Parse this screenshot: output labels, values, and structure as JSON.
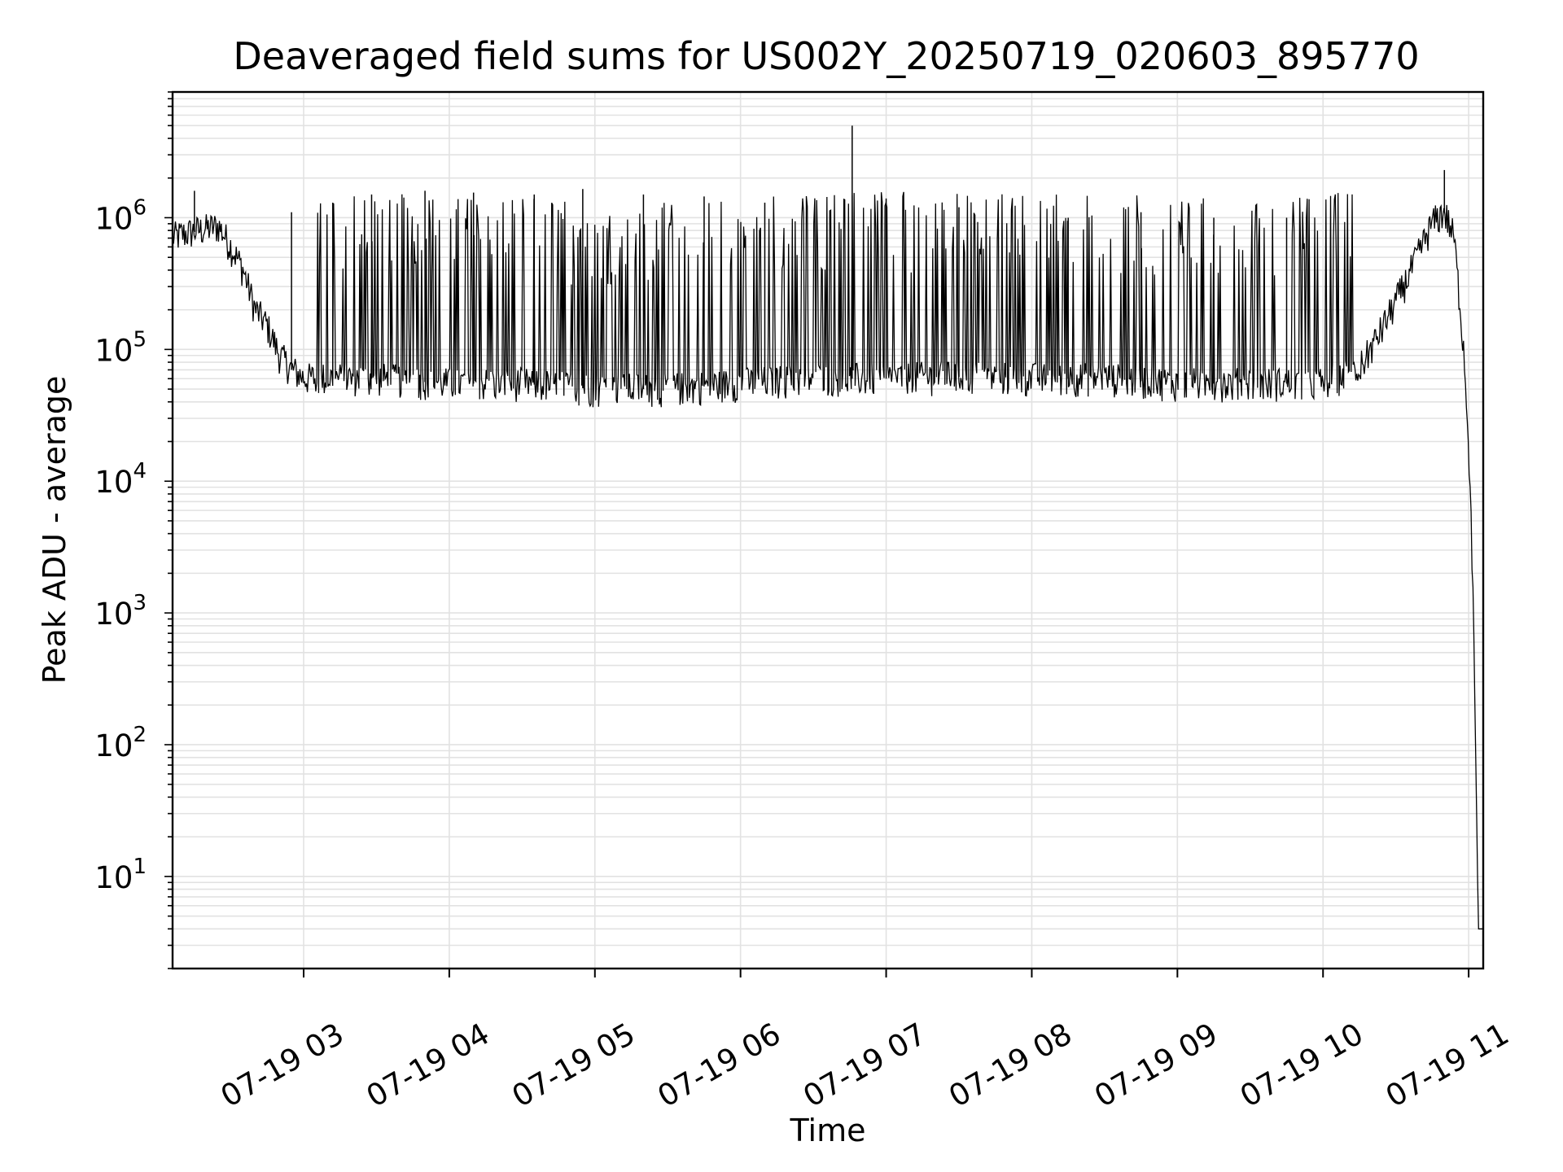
{
  "chart_data": {
    "type": "line",
    "title": "Deaveraged field sums for US002Y_20250719_020603_895770",
    "xlabel": "Time",
    "ylabel": "Peak ADU - average",
    "yscale": "log",
    "ylim": [
      2,
      9000000
    ],
    "xlim": [
      "2025-07-19 02:06",
      "2025-07-19 11:06"
    ],
    "grid": true,
    "x_ticks": [
      {
        "value": "2025-07-19 03:00",
        "label": "07-19 03"
      },
      {
        "value": "2025-07-19 04:00",
        "label": "07-19 04"
      },
      {
        "value": "2025-07-19 05:00",
        "label": "07-19 05"
      },
      {
        "value": "2025-07-19 06:00",
        "label": "07-19 06"
      },
      {
        "value": "2025-07-19 07:00",
        "label": "07-19 07"
      },
      {
        "value": "2025-07-19 08:00",
        "label": "07-19 08"
      },
      {
        "value": "2025-07-19 09:00",
        "label": "07-19 09"
      },
      {
        "value": "2025-07-19 10:00",
        "label": "07-19 10"
      },
      {
        "value": "2025-07-19 11:00",
        "label": "07-19 11"
      }
    ],
    "y_ticks": [
      {
        "value": 10,
        "base": "10",
        "exp": "1"
      },
      {
        "value": 100,
        "base": "10",
        "exp": "2"
      },
      {
        "value": 1000,
        "base": "10",
        "exp": "3"
      },
      {
        "value": 10000,
        "base": "10",
        "exp": "4"
      },
      {
        "value": 100000,
        "base": "10",
        "exp": "5"
      },
      {
        "value": 1000000,
        "base": "10",
        "exp": "6"
      }
    ],
    "series": [
      {
        "color": "#000000",
        "points": [
          [
            "2025-07-19 02:06",
            700000
          ],
          [
            "2025-07-19 02:15",
            780000
          ],
          [
            "2025-07-19 02:25",
            850000
          ],
          [
            "2025-07-19 02:30",
            600000
          ],
          [
            "2025-07-19 02:35",
            400000
          ],
          [
            "2025-07-19 02:40",
            200000
          ],
          [
            "2025-07-19 02:45",
            150000
          ],
          [
            "2025-07-19 02:50",
            90000
          ],
          [
            "2025-07-19 02:55",
            70000
          ],
          [
            "2025-07-19 03:00",
            60000
          ],
          [
            "2025-07-19 03:30",
            60000
          ],
          [
            "2025-07-19 04:00",
            55000
          ],
          [
            "2025-07-19 04:30",
            55000
          ],
          [
            "2025-07-19 05:00",
            50000
          ],
          [
            "2025-07-19 05:30",
            50000
          ],
          [
            "2025-07-19 06:00",
            55000
          ],
          [
            "2025-07-19 06:30",
            60000
          ],
          [
            "2025-07-19 07:00",
            60000
          ],
          [
            "2025-07-19 07:30",
            62000
          ],
          [
            "2025-07-19 08:00",
            60000
          ],
          [
            "2025-07-19 08:30",
            60000
          ],
          [
            "2025-07-19 09:00",
            55000
          ],
          [
            "2025-07-19 09:30",
            55000
          ],
          [
            "2025-07-19 10:00",
            55000
          ],
          [
            "2025-07-19 10:15",
            70000
          ],
          [
            "2025-07-19 10:25",
            150000
          ],
          [
            "2025-07-19 10:35",
            350000
          ],
          [
            "2025-07-19 10:45",
            900000
          ],
          [
            "2025-07-19 10:50",
            1100000
          ],
          [
            "2025-07-19 10:54",
            700000
          ],
          [
            "2025-07-19 10:58",
            100000
          ],
          [
            "2025-07-19 11:00",
            20000
          ],
          [
            "2025-07-19 11:02",
            1000
          ],
          [
            "2025-07-19 11:04",
            4
          ],
          [
            "2025-07-19 11:06",
            4
          ]
        ],
        "spikes": [
          [
            "2025-07-19 02:15",
            1600000
          ],
          [
            "2025-07-19 02:55",
            1100000
          ],
          [
            "2025-07-19 03:12",
            1300000
          ],
          [
            "2025-07-19 03:28",
            1500000
          ],
          [
            "2025-07-19 03:50",
            1600000
          ],
          [
            "2025-07-19 04:10",
            1550000
          ],
          [
            "2025-07-19 04:35",
            1500000
          ],
          [
            "2025-07-19 04:55",
            1650000
          ],
          [
            "2025-07-19 05:20",
            1500000
          ],
          [
            "2025-07-19 05:45",
            1450000
          ],
          [
            "2025-07-19 06:10",
            1300000
          ],
          [
            "2025-07-19 06:46",
            5000000
          ],
          [
            "2025-07-19 07:00",
            1400000
          ],
          [
            "2025-07-19 07:30",
            1200000
          ],
          [
            "2025-07-19 08:15",
            1000000
          ],
          [
            "2025-07-19 08:45",
            1100000
          ],
          [
            "2025-07-19 09:15",
            1000000
          ],
          [
            "2025-07-19 09:45",
            1000000
          ],
          [
            "2025-07-19 10:50",
            2300000
          ]
        ]
      }
    ]
  }
}
